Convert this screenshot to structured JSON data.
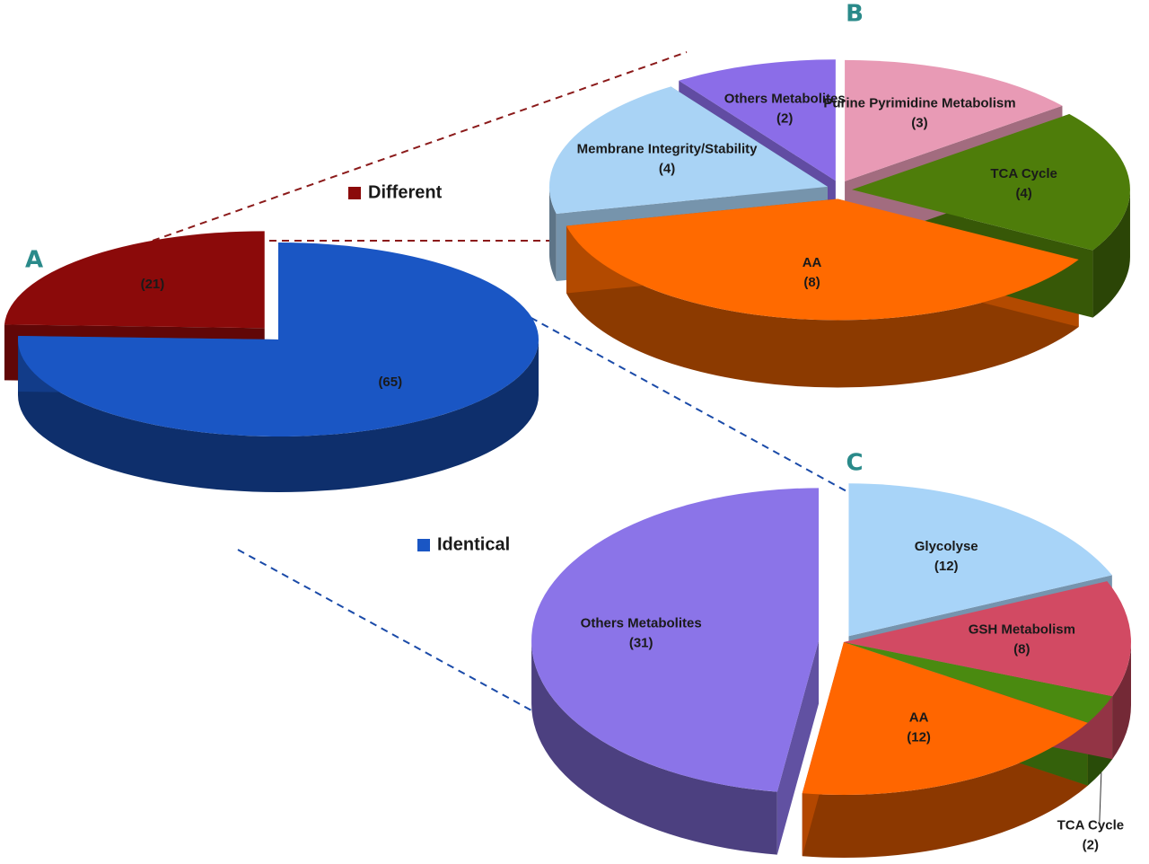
{
  "chart_data": [
    {
      "type": "pie",
      "title": "A",
      "legend": true,
      "categories": [
        "Different",
        "Identical"
      ],
      "values": [
        21,
        65
      ],
      "value_labels": [
        "(21)",
        "(65)"
      ],
      "colors": [
        "#8b0a0a",
        "#1a56c4"
      ]
    },
    {
      "type": "pie",
      "title": "B",
      "legend": false,
      "categories": [
        "Others Metabolites",
        "Membrane Integrity/Stability",
        "AA",
        "TCA Cycle",
        "Purine Pyrimidine Metabolism"
      ],
      "values": [
        2,
        4,
        8,
        4,
        3
      ],
      "value_labels": [
        "(2)",
        "(4)",
        "(8)",
        "(4)",
        "(3)"
      ],
      "colors": [
        "#8b6de8",
        "#a9d3f5",
        "#ff6a00",
        "#4e7d0a",
        "#e89ab5"
      ]
    },
    {
      "type": "pie",
      "title": "C",
      "legend": false,
      "categories": [
        "Others Metabolites",
        "AA",
        "TCA Cycle",
        "GSH Metabolism",
        "Glycolyse"
      ],
      "values": [
        31,
        12,
        2,
        8,
        12
      ],
      "value_labels": [
        "(31)",
        "(12)",
        "(2)",
        "(8)",
        "(12)"
      ],
      "colors": [
        "#8b74e8",
        "#ff6600",
        "#4a8a10",
        "#d24a63",
        "#a8d4f8"
      ]
    }
  ]
}
